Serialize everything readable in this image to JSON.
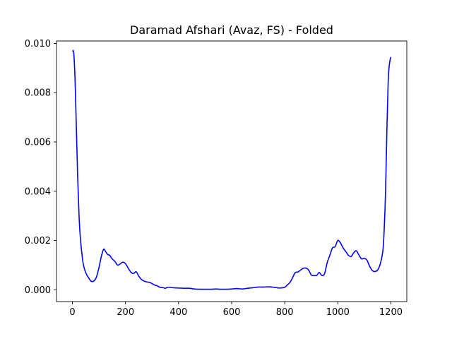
{
  "chart_data": {
    "type": "line",
    "title": "Daramad Afshari (Avaz, FS) - Folded",
    "xlabel": "",
    "ylabel": "",
    "xlim": [
      -60,
      1260
    ],
    "ylim": [
      -0.00048,
      0.0101
    ],
    "xticks": [
      0,
      200,
      400,
      600,
      800,
      1000,
      1200
    ],
    "xtick_labels": [
      "0",
      "200",
      "400",
      "600",
      "800",
      "1000",
      "1200"
    ],
    "yticks": [
      0.0,
      0.002,
      0.004,
      0.006,
      0.008,
      0.01
    ],
    "ytick_labels": [
      "0.000",
      "0.002",
      "0.004",
      "0.006",
      "0.008",
      "0.010"
    ],
    "grid": false,
    "series": [
      {
        "name": "",
        "color": "#0000ff",
        "x": [
          0,
          5,
          10,
          15,
          20,
          25,
          30,
          40,
          50,
          60,
          70,
          80,
          90,
          100,
          110,
          118,
          125,
          133,
          140,
          150,
          160,
          170,
          180,
          190,
          200,
          210,
          220,
          230,
          240,
          250,
          260,
          270,
          280,
          290,
          300,
          310,
          320,
          330,
          340,
          350,
          360,
          380,
          400,
          420,
          440,
          460,
          480,
          500,
          520,
          540,
          560,
          580,
          600,
          620,
          640,
          660,
          680,
          700,
          720,
          740,
          760,
          780,
          800,
          810,
          820,
          830,
          840,
          850,
          860,
          870,
          880,
          890,
          900,
          910,
          920,
          930,
          940,
          950,
          960,
          970,
          980,
          990,
          1000,
          1010,
          1020,
          1030,
          1040,
          1050,
          1060,
          1070,
          1080,
          1090,
          1100,
          1110,
          1120,
          1130,
          1140,
          1150,
          1160,
          1170,
          1175,
          1180,
          1185,
          1190,
          1195,
          1200
        ],
        "y": [
          0.0097,
          0.0096,
          0.0085,
          0.0065,
          0.0045,
          0.003,
          0.0021,
          0.0011,
          0.0007,
          0.0005,
          0.00035,
          0.00035,
          0.0005,
          0.0009,
          0.0014,
          0.00165,
          0.00155,
          0.00143,
          0.0014,
          0.00125,
          0.00115,
          0.001,
          0.00105,
          0.00112,
          0.00106,
          0.00088,
          0.00072,
          0.00066,
          0.00073,
          0.00055,
          0.00042,
          0.00035,
          0.00032,
          0.0003,
          0.00025,
          0.00019,
          0.00016,
          0.0001,
          9e-05,
          6e-05,
          0.0001,
          8e-05,
          7e-05,
          6e-05,
          6e-05,
          3e-05,
          2e-05,
          2e-05,
          2e-05,
          3e-05,
          2e-05,
          2e-05,
          3e-05,
          5e-05,
          3e-05,
          6e-05,
          8e-05,
          0.00011,
          0.00011,
          0.00012,
          0.0001,
          7e-05,
          0.0001,
          0.0002,
          0.0003,
          0.0005,
          0.0007,
          0.00072,
          0.0008,
          0.00087,
          0.00088,
          0.0008,
          0.0006,
          0.00058,
          0.00058,
          0.0007,
          0.00058,
          0.00065,
          0.0011,
          0.0014,
          0.0017,
          0.00175,
          0.002,
          0.0019,
          0.0017,
          0.00155,
          0.0014,
          0.00135,
          0.0015,
          0.00158,
          0.0014,
          0.00125,
          0.00128,
          0.0012,
          0.00095,
          0.00078,
          0.00074,
          0.0008,
          0.00105,
          0.0016,
          0.0025,
          0.004,
          0.0065,
          0.0085,
          0.0092,
          0.00945
        ]
      }
    ]
  }
}
